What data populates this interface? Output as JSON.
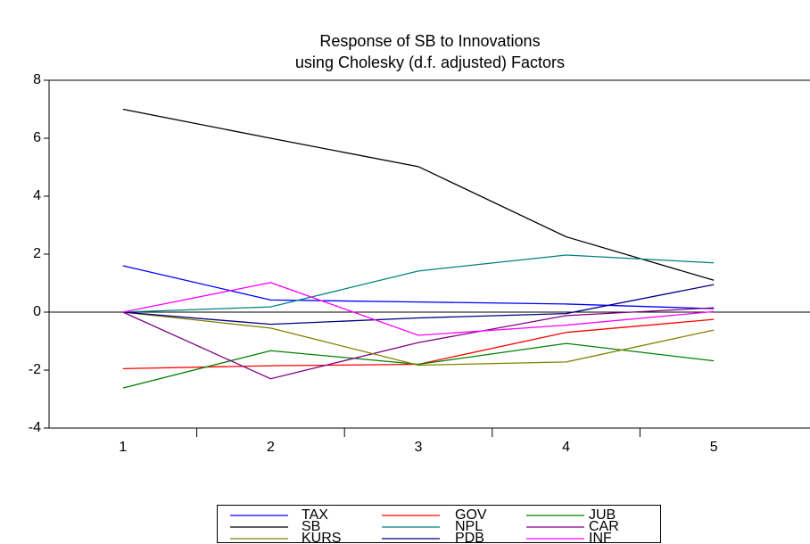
{
  "chart_data": {
    "type": "line",
    "title": "Response of SB to Innovations",
    "subtitle": "using Cholesky (d.f. adjusted) Factors",
    "categories": [
      "1",
      "2",
      "3",
      "4",
      "5"
    ],
    "ylim": [
      -4,
      8
    ],
    "yticks": [
      -4,
      -2,
      0,
      2,
      4,
      6,
      8
    ],
    "series": [
      {
        "name": "TAX",
        "color": "#0000ff",
        "values": [
          1.6,
          0.42,
          0.35,
          0.28,
          0.12
        ]
      },
      {
        "name": "GOV",
        "color": "#ff0000",
        "values": [
          -1.95,
          -1.85,
          -1.8,
          -0.7,
          -0.25
        ]
      },
      {
        "name": "JUB",
        "color": "#008000",
        "values": [
          -2.62,
          -1.33,
          -1.8,
          -1.08,
          -1.68
        ]
      },
      {
        "name": "SB",
        "color": "#000000",
        "values": [
          7.0,
          6.0,
          5.02,
          2.6,
          1.1
        ]
      },
      {
        "name": "NPL",
        "color": "#008080",
        "values": [
          0,
          0.18,
          1.42,
          1.97,
          1.7
        ]
      },
      {
        "name": "CAR",
        "color": "#800080",
        "values": [
          0,
          -2.3,
          -1.05,
          -0.12,
          0.15
        ]
      },
      {
        "name": "KURS",
        "color": "#808000",
        "values": [
          0,
          -0.55,
          -1.83,
          -1.72,
          -0.62
        ]
      },
      {
        "name": "PDB",
        "color": "#000080",
        "values": [
          0,
          -0.42,
          -0.2,
          -0.05,
          0.95
        ]
      },
      {
        "name": "INF",
        "color": "#ff00ff",
        "values": [
          0,
          1.02,
          -0.8,
          -0.45,
          0.02
        ]
      }
    ]
  }
}
